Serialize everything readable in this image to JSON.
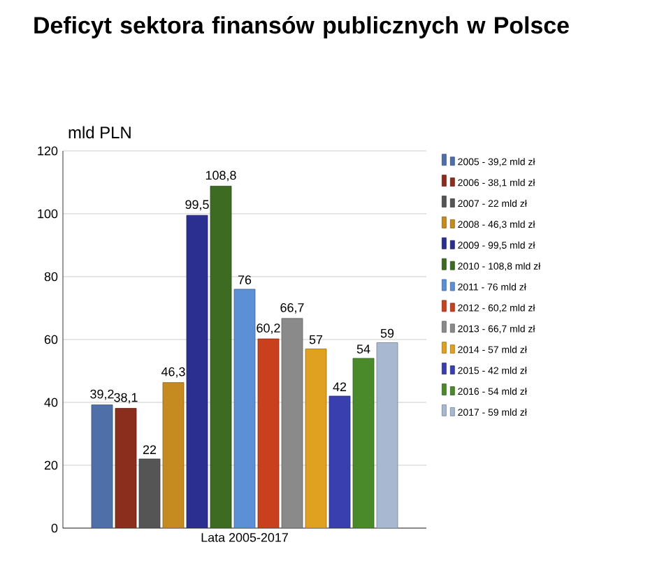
{
  "chart_data": {
    "type": "bar",
    "title": "Deficyt sektora finansów publicznych w Polsce",
    "ylabel": "mld PLN",
    "categories": [
      "Lata 2005-2017"
    ],
    "series": [
      {
        "name": "2005 - 39,2 mld zł",
        "color": "#4f6fa8",
        "values": [
          39.2
        ],
        "value_labels": [
          "39,2"
        ]
      },
      {
        "name": "2006 - 38,1 mld zł",
        "color": "#8b2e1e",
        "values": [
          38.1
        ],
        "value_labels": [
          "38,1"
        ]
      },
      {
        "name": "2007 - 22 mld zł",
        "color": "#555555",
        "values": [
          22
        ],
        "value_labels": [
          "22"
        ]
      },
      {
        "name": "2008 - 46,3 mld zł",
        "color": "#c58a20",
        "values": [
          46.3
        ],
        "value_labels": [
          "46,3"
        ]
      },
      {
        "name": "2009 - 99,5 mld zł",
        "color": "#2b2f8f",
        "values": [
          99.5
        ],
        "value_labels": [
          "99,5"
        ]
      },
      {
        "name": "2010 - 108,8 mld zł",
        "color": "#3d6b22",
        "values": [
          108.8
        ],
        "value_labels": [
          "108,8"
        ]
      },
      {
        "name": "2011 - 76 mld zł",
        "color": "#5b8fd6",
        "values": [
          76
        ],
        "value_labels": [
          "76"
        ]
      },
      {
        "name": "2012 - 60,2 mld zł",
        "color": "#c8401e",
        "values": [
          60.2
        ],
        "value_labels": [
          "60,2"
        ]
      },
      {
        "name": "2013 - 66,7 mld zł",
        "color": "#8a8a8a",
        "values": [
          66.7
        ],
        "value_labels": [
          "66,7"
        ]
      },
      {
        "name": "2014 - 57 mld zł",
        "color": "#e0a020",
        "values": [
          57
        ],
        "value_labels": [
          "57"
        ]
      },
      {
        "name": "2015 - 42 mld zł",
        "color": "#3a3fb0",
        "values": [
          42
        ],
        "value_labels": [
          "42"
        ]
      },
      {
        "name": "2016 - 54 mld zł",
        "color": "#4a8a2a",
        "values": [
          54
        ],
        "value_labels": [
          "54"
        ]
      },
      {
        "name": "2017 - 59 mld zł",
        "color": "#a8b8d0",
        "values": [
          59
        ],
        "value_labels": [
          "59"
        ]
      }
    ],
    "ylim": [
      0,
      120
    ],
    "yticks": [
      0,
      20,
      40,
      60,
      80,
      100,
      120
    ],
    "grid": "y",
    "legend": "right"
  }
}
